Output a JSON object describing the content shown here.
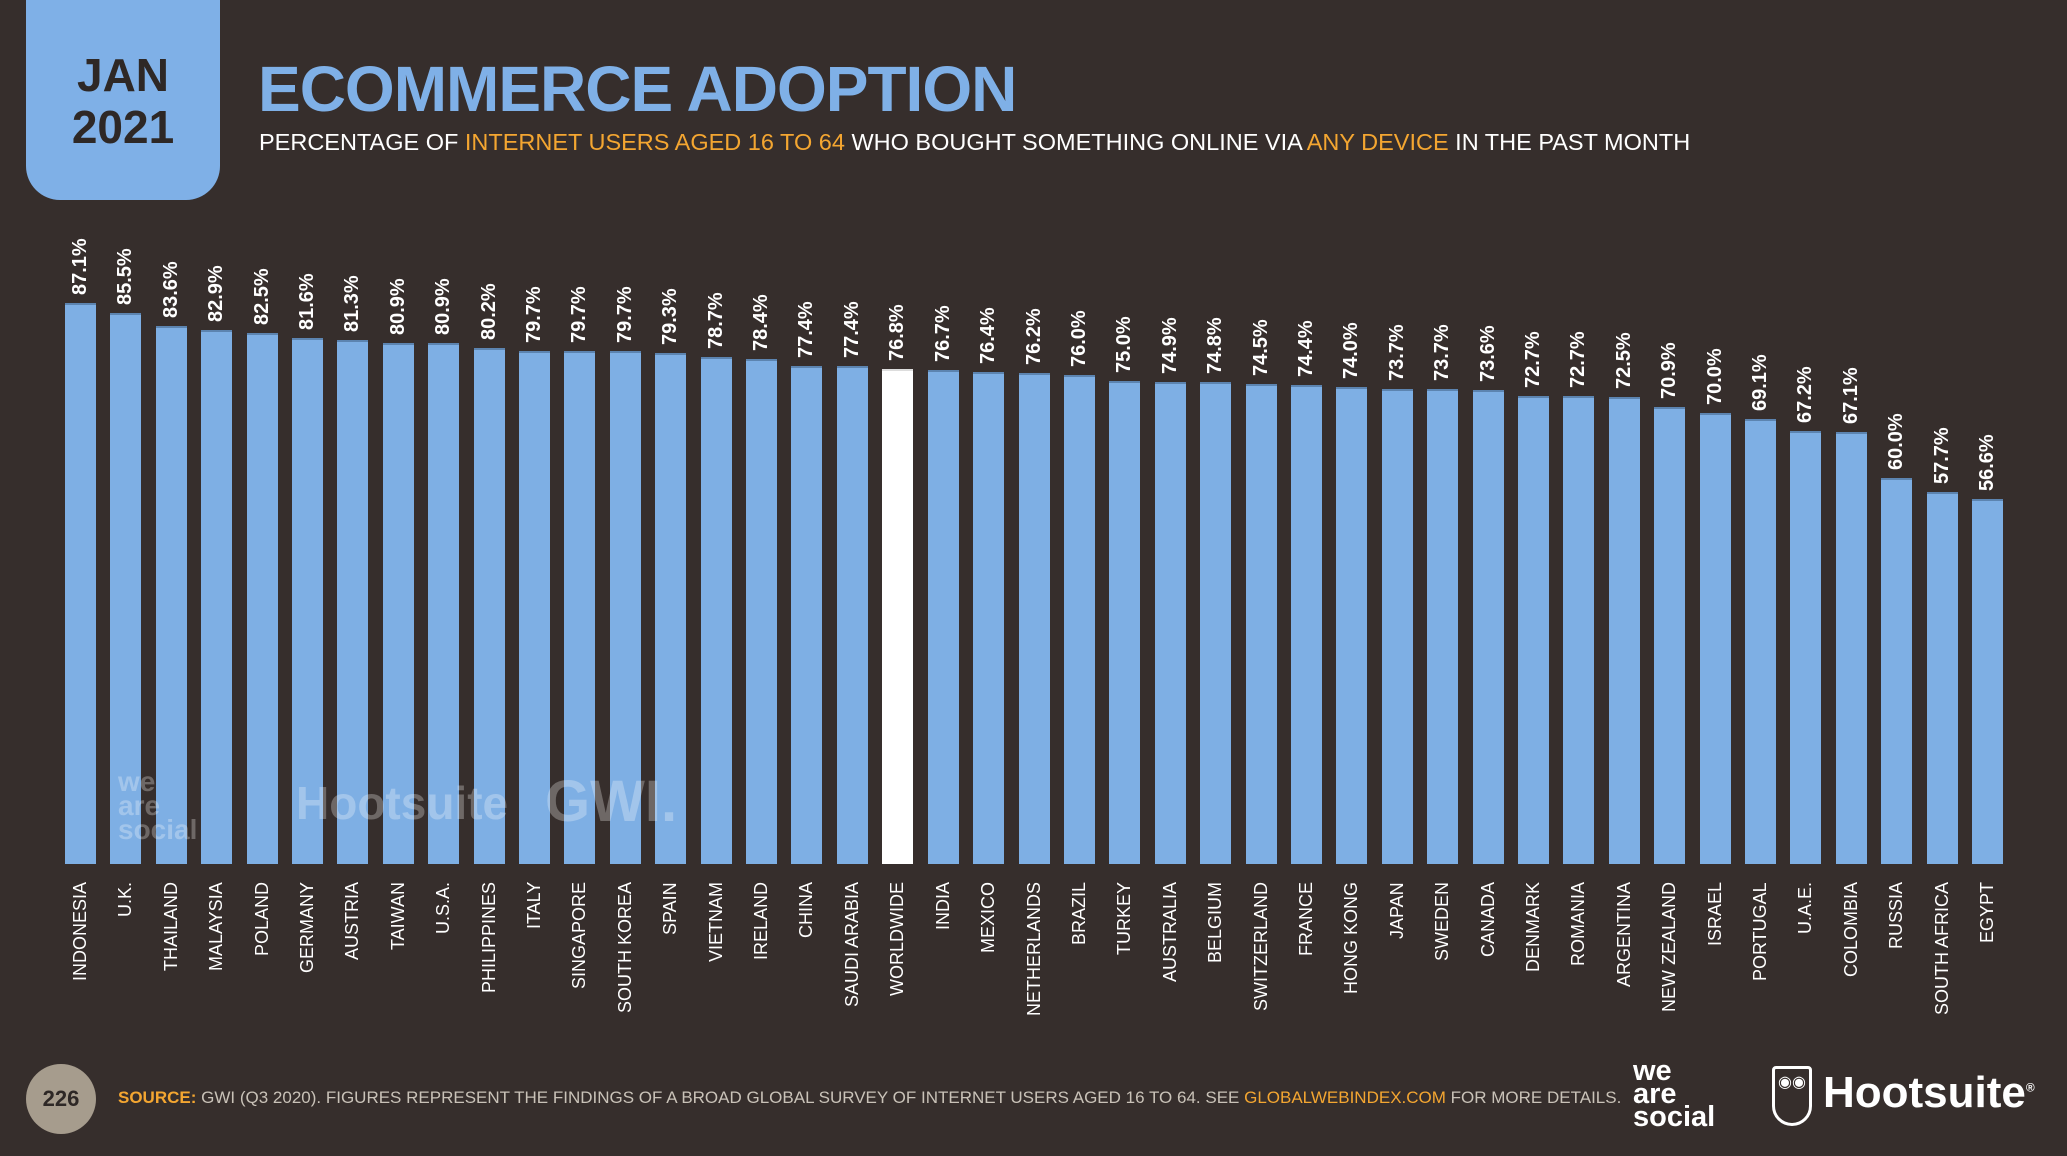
{
  "badge": {
    "month": "JAN",
    "year": "2021"
  },
  "header": {
    "title": "ECOMMERCE ADOPTION",
    "subtitle_parts": [
      "PERCENTAGE OF ",
      "INTERNET USERS AGED 16 TO 64",
      " WHO BOUGHT SOMETHING ONLINE VIA ",
      "ANY DEVICE",
      " IN THE PAST MONTH"
    ]
  },
  "colors": {
    "background": "#362e2c",
    "bar": "#7eafe4",
    "highlight_bar": "#ffffff",
    "accent": "#f4a631",
    "badge": "#7fb0e7"
  },
  "chart_data": {
    "type": "bar",
    "title": "ECOMMERCE ADOPTION",
    "xlabel": "",
    "ylabel": "",
    "ylim": [
      0,
      100
    ],
    "grid": false,
    "highlight": "WORLDWIDE",
    "categories": [
      "INDONESIA",
      "U.K.",
      "THAILAND",
      "MALAYSIA",
      "POLAND",
      "GERMANY",
      "AUSTRIA",
      "TAIWAN",
      "U.S.A.",
      "PHILIPPINES",
      "ITALY",
      "SINGAPORE",
      "SOUTH KOREA",
      "SPAIN",
      "VIETNAM",
      "IRELAND",
      "CHINA",
      "SAUDI ARABIA",
      "WORLDWIDE",
      "INDIA",
      "MEXICO",
      "NETHERLANDS",
      "BRAZIL",
      "TURKEY",
      "AUSTRALIA",
      "BELGIUM",
      "SWITZERLAND",
      "FRANCE",
      "HONG KONG",
      "JAPAN",
      "SWEDEN",
      "CANADA",
      "DENMARK",
      "ROMANIA",
      "ARGENTINA",
      "NEW ZEALAND",
      "ISRAEL",
      "PORTUGAL",
      "U.A.E.",
      "COLOMBIA",
      "RUSSIA",
      "SOUTH AFRICA",
      "EGYPT"
    ],
    "values": [
      87.1,
      85.5,
      83.6,
      82.9,
      82.5,
      81.6,
      81.3,
      80.9,
      80.9,
      80.2,
      79.7,
      79.7,
      79.7,
      79.3,
      78.7,
      78.4,
      77.4,
      77.4,
      76.8,
      76.7,
      76.4,
      76.2,
      76.0,
      75.0,
      74.9,
      74.8,
      74.5,
      74.4,
      74.0,
      73.7,
      73.7,
      73.6,
      72.7,
      72.7,
      72.5,
      70.9,
      70.0,
      69.1,
      67.2,
      67.1,
      60.0,
      57.7,
      56.6
    ],
    "labels": [
      "87.1%",
      "85.5%",
      "83.6%",
      "82.9%",
      "82.5%",
      "81.6%",
      "81.3%",
      "80.9%",
      "80.9%",
      "80.2%",
      "79.7%",
      "79.7%",
      "79.7%",
      "79.3%",
      "78.7%",
      "78.4%",
      "77.4%",
      "77.4%",
      "76.8%",
      "76.7%",
      "76.4%",
      "76.2%",
      "76.0%",
      "75.0%",
      "74.9%",
      "74.8%",
      "74.5%",
      "74.4%",
      "74.0%",
      "73.7%",
      "73.7%",
      "73.6%",
      "72.7%",
      "72.7%",
      "72.5%",
      "70.9%",
      "70.0%",
      "69.1%",
      "67.2%",
      "67.1%",
      "60.0%",
      "57.7%",
      "56.6%"
    ]
  },
  "watermarks": {
    "we_are_social": "we are social",
    "hootsuite": "Hootsuite",
    "gwi": "GWI."
  },
  "footer": {
    "page_number": "226",
    "source_label": "SOURCE:",
    "source_text": " GWI (Q3 2020). FIGURES REPRESENT THE FINDINGS OF A BROAD GLOBAL SURVEY OF INTERNET USERS AGED 16 TO 64. SEE ",
    "source_link": "GLOBALWEBINDEX.COM",
    "source_tail": " FOR MORE DETAILS."
  },
  "logos": {
    "we_are_social": [
      "we",
      "are",
      "social"
    ],
    "hootsuite": "Hootsuite"
  }
}
